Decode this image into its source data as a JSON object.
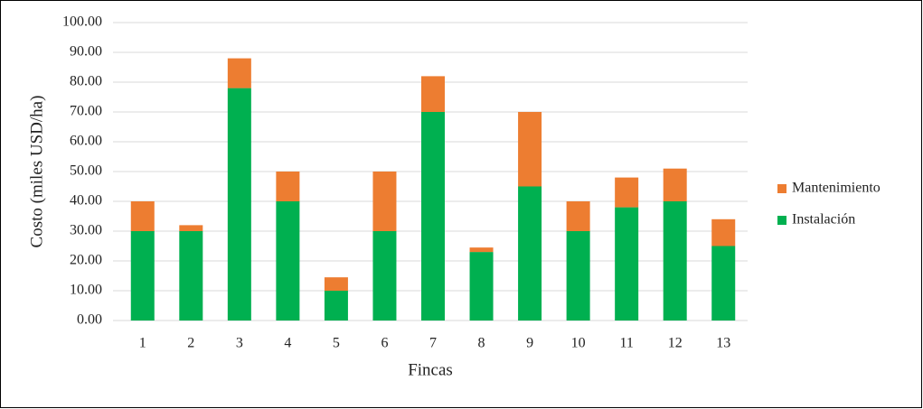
{
  "chart_data": {
    "type": "stacked_bar",
    "categories": [
      "1",
      "2",
      "3",
      "4",
      "5",
      "6",
      "7",
      "8",
      "9",
      "10",
      "11",
      "12",
      "13"
    ],
    "series": [
      {
        "name": "Instalación",
        "color": "#00b050",
        "values": [
          30,
          30,
          78,
          40,
          10,
          30,
          70,
          23,
          45,
          30,
          38,
          40,
          25
        ]
      },
      {
        "name": "Mantenimiento",
        "color": "#ed7d31",
        "values": [
          10,
          2,
          10,
          10,
          4.5,
          20,
          12,
          1.5,
          25,
          10,
          10,
          11,
          9
        ]
      }
    ],
    "x_label": "Fincas",
    "y_label": "Costo (miles USD/ha)",
    "ylim": [
      0,
      100
    ],
    "yticks": [
      {
        "value": 0,
        "label": "0.00"
      },
      {
        "value": 10,
        "label": "10.00"
      },
      {
        "value": 20,
        "label": "20.00"
      },
      {
        "value": 30,
        "label": "30.00"
      },
      {
        "value": 40,
        "label": "40.00"
      },
      {
        "value": 50,
        "label": "50.00"
      },
      {
        "value": 60,
        "label": "60.00"
      },
      {
        "value": 70,
        "label": "70.00"
      },
      {
        "value": 80,
        "label": "80.00"
      },
      {
        "value": 90,
        "label": "90.00"
      },
      {
        "value": 100,
        "label": "100.00"
      }
    ],
    "grid": true,
    "legend": "right"
  }
}
